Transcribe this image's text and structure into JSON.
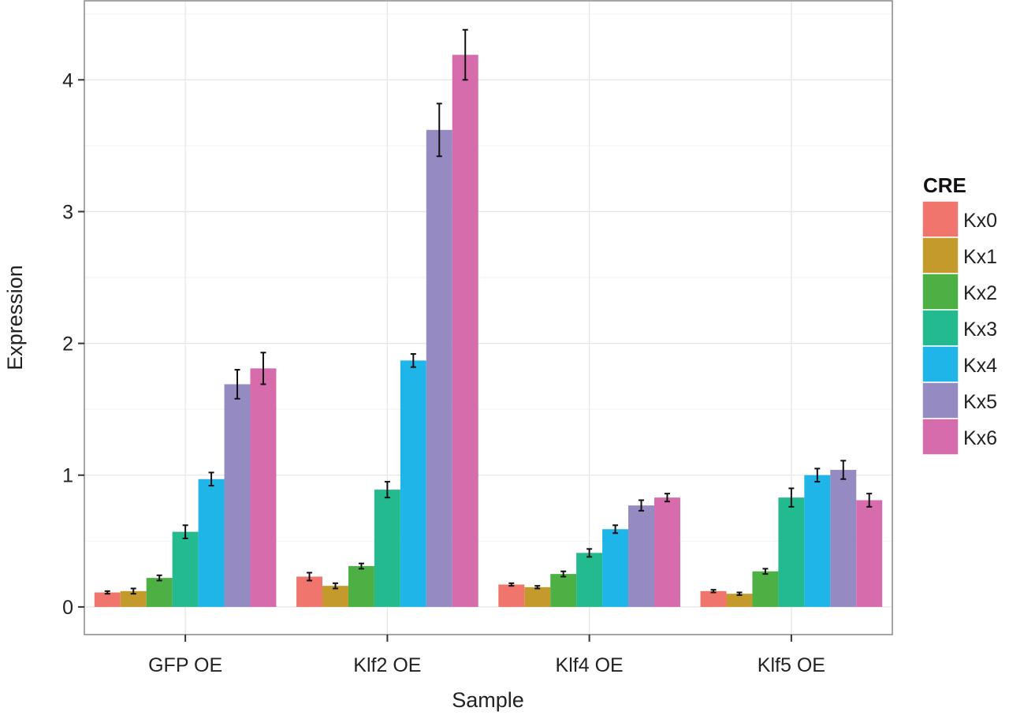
{
  "chart_data": {
    "type": "bar",
    "title": "",
    "xlabel": "Sample",
    "ylabel": "Expression",
    "ylim": [
      -0.21,
      4.6
    ],
    "yticks": [
      0,
      1,
      2,
      3,
      4
    ],
    "grid": true,
    "legend": {
      "title": "CRE",
      "placement": "right"
    },
    "categories": [
      "GFP OE",
      "Klf2 OE",
      "Klf4 OE",
      "Klf5 OE"
    ],
    "series": [
      {
        "name": "Kx0",
        "color": "#F0766D",
        "values": [
          0.11,
          0.23,
          0.17,
          0.12
        ],
        "errors": [
          0.01,
          0.03,
          0.01,
          0.01
        ]
      },
      {
        "name": "Kx1",
        "color": "#C49A2C",
        "values": [
          0.12,
          0.16,
          0.15,
          0.1
        ],
        "errors": [
          0.02,
          0.02,
          0.01,
          0.01
        ]
      },
      {
        "name": "Kx2",
        "color": "#4DB044",
        "values": [
          0.22,
          0.31,
          0.25,
          0.27
        ],
        "errors": [
          0.02,
          0.02,
          0.02,
          0.02
        ]
      },
      {
        "name": "Kx3",
        "color": "#22BA8E",
        "values": [
          0.57,
          0.89,
          0.41,
          0.83
        ],
        "errors": [
          0.05,
          0.06,
          0.03,
          0.07
        ]
      },
      {
        "name": "Kx4",
        "color": "#1FB5E8",
        "values": [
          0.97,
          1.87,
          0.59,
          1.0
        ],
        "errors": [
          0.05,
          0.05,
          0.03,
          0.05
        ]
      },
      {
        "name": "Kx5",
        "color": "#958AC2",
        "values": [
          1.69,
          3.62,
          0.77,
          1.04
        ],
        "errors": [
          0.11,
          0.2,
          0.04,
          0.07
        ]
      },
      {
        "name": "Kx6",
        "color": "#D66CAC",
        "values": [
          1.81,
          4.19,
          0.83,
          0.81
        ],
        "errors": [
          0.12,
          0.19,
          0.03,
          0.05
        ]
      }
    ]
  }
}
